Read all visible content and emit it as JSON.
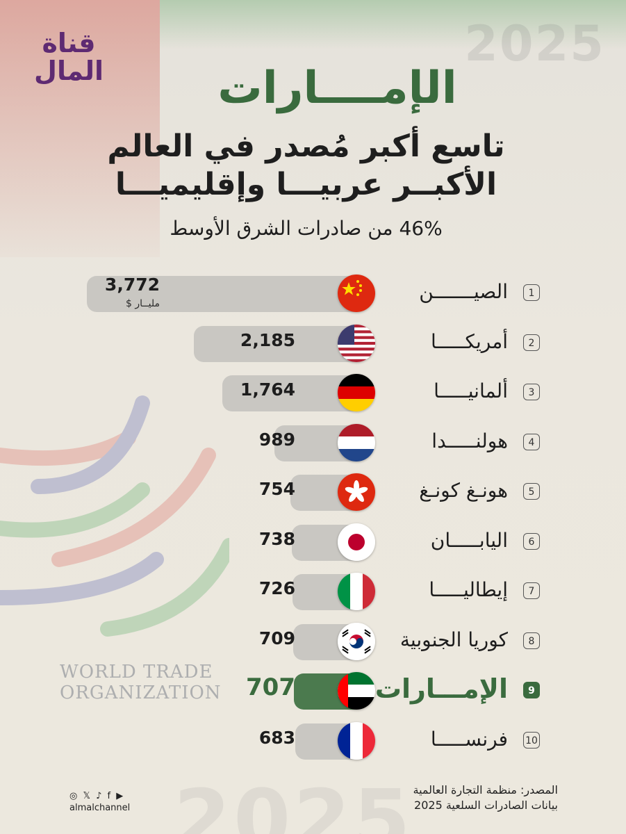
{
  "brand": {
    "line1": "قناة",
    "line2": "المال"
  },
  "watermark": {
    "year_top": "2025",
    "year_bottom": "2025",
    "wto_line1": "WORLD TRADE",
    "wto_line2": "ORGANIZATION"
  },
  "header": {
    "title": "الإمــــارات",
    "subtitle1": "تاسع أكبر مُصدر في العالم",
    "subtitle2": "الأكبــر عربيـــا وإقليميـــا",
    "subtitle3": "46% من صادرات الشرق الأوسط"
  },
  "colors": {
    "accent": "#3a6b3e",
    "bar": "#c9c7c2",
    "highlight_bar": "#4b7a4e",
    "brand": "#5e2a72"
  },
  "chart_data": {
    "type": "bar",
    "orientation": "horizontal",
    "unit_label": "مليــار $",
    "highlight_rank": 9,
    "ranks": [
      "1",
      "2",
      "3",
      "4",
      "5",
      "6",
      "7",
      "8",
      "9",
      "10"
    ],
    "categories": [
      "الصيـــــــن",
      "أمريكـــــا",
      "ألمانيـــــا",
      "هولنـــــدا",
      "هونـغ كونـغ",
      "اليابـــــان",
      "إيطاليـــــا",
      "كوريا الجنوبية",
      "الإمـــارات",
      "فرنســـــا"
    ],
    "value_labels": [
      "3,772",
      "2,185",
      "1,764",
      "989",
      "754",
      "738",
      "726",
      "709",
      "707",
      "683"
    ],
    "values": [
      3772,
      2185,
      1764,
      989,
      754,
      738,
      726,
      709,
      707,
      683
    ],
    "flags": [
      "china-flag-icon",
      "usa-flag-icon",
      "germany-flag-icon",
      "netherlands-flag-icon",
      "hongkong-flag-icon",
      "japan-flag-icon",
      "italy-flag-icon",
      "south-korea-flag-icon",
      "uae-flag-icon",
      "france-flag-icon"
    ]
  },
  "footer": {
    "social_icons": [
      "instagram-icon",
      "x-icon",
      "tiktok-icon",
      "facebook-icon",
      "youtube-icon"
    ],
    "handle": "almalchannel",
    "source_line1": "المصدر: منظمة التجارة العالمية",
    "source_line2": "بيانات الصادرات السلعية 2025"
  }
}
